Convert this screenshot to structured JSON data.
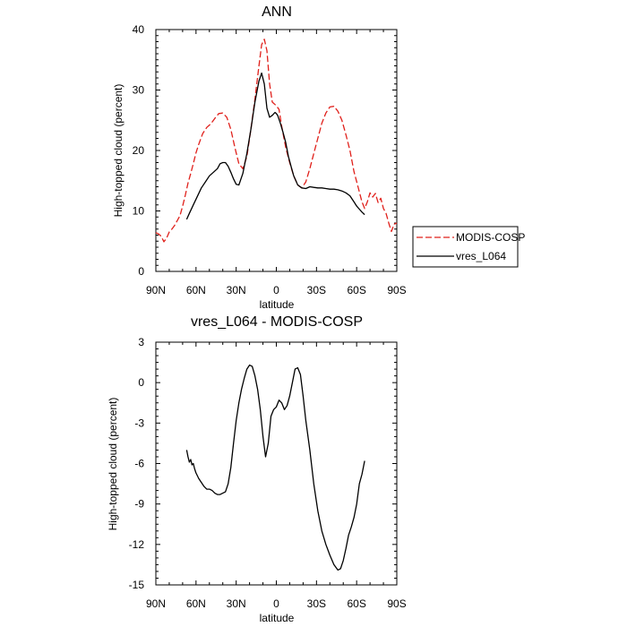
{
  "colors": {
    "modis": "#e0201b",
    "model": "#000000"
  },
  "chart_data": [
    {
      "type": "line",
      "title": "ANN",
      "xlabel": "latitude",
      "ylabel": "High-topped cloud (percent)",
      "xlim": [
        90,
        -90
      ],
      "ylim": [
        0,
        40
      ],
      "xticks": [
        90,
        60,
        30,
        0,
        -30,
        -60,
        -90
      ],
      "xtick_labels": [
        "90N",
        "60N",
        "30N",
        "0",
        "30S",
        "60S",
        "90S"
      ],
      "yticks": [
        0,
        10,
        20,
        30,
        40
      ],
      "ytick_labels": [
        "0",
        "10",
        "20",
        "30",
        "40"
      ],
      "legend_position": "right",
      "series": [
        {
          "name": "MODIS-COSP",
          "style": "dashed",
          "color": "#e0201b",
          "x": [
            90,
            88,
            86,
            84,
            82,
            80,
            78,
            76,
            74,
            72,
            70,
            68,
            66,
            64,
            62,
            60,
            58,
            55,
            52,
            49,
            46,
            43,
            40,
            37,
            34,
            31,
            28,
            25,
            22,
            19,
            16,
            13,
            11,
            9,
            7,
            5,
            3,
            1,
            0,
            -2,
            -4,
            -7,
            -10,
            -13,
            -16,
            -19,
            -22,
            -25,
            -28,
            -31,
            -34,
            -37,
            -40,
            -43,
            -46,
            -49,
            -52,
            -55,
            -58,
            -61,
            -64,
            -66,
            -68,
            -70,
            -72,
            -74,
            -76,
            -78,
            -80,
            -82,
            -84,
            -86,
            -88,
            -90
          ],
          "y": [
            6.4,
            6.2,
            5.8,
            4.9,
            5.5,
            6.5,
            7.0,
            7.6,
            8.4,
            9.2,
            10.8,
            12.6,
            14.6,
            16.2,
            17.8,
            19.6,
            21.0,
            22.8,
            23.8,
            24.4,
            25.3,
            26.1,
            26.2,
            25.5,
            23.5,
            20.5,
            17.8,
            17.0,
            19.0,
            23.5,
            28.5,
            34.0,
            37.5,
            38.4,
            36.5,
            31.0,
            28.0,
            27.6,
            27.4,
            26.8,
            24.0,
            20.5,
            18.0,
            15.8,
            14.3,
            13.8,
            14.8,
            17.0,
            19.5,
            22.0,
            24.5,
            26.2,
            27.2,
            27.3,
            26.5,
            25.0,
            22.6,
            20.0,
            16.5,
            14.0,
            11.5,
            10.4,
            11.5,
            13.0,
            12.3,
            12.9,
            11.4,
            12.1,
            10.4,
            9.6,
            8.0,
            6.6,
            7.8,
            8.0
          ]
        },
        {
          "name": "vres_L064",
          "style": "solid",
          "color": "#000000",
          "x": [
            67,
            65,
            62,
            59,
            56,
            53,
            50,
            47,
            44,
            42,
            40,
            38,
            36,
            34,
            32,
            30,
            28,
            25,
            22,
            19,
            16,
            13,
            11,
            9,
            7,
            5,
            3,
            1,
            0,
            -1,
            -3,
            -5,
            -7,
            -9,
            -11,
            -13,
            -16,
            -19,
            -22,
            -25,
            -28,
            -31,
            -34,
            -37,
            -40,
            -43,
            -46,
            -49,
            -52,
            -55,
            -58,
            -60,
            -62,
            -64,
            -66
          ],
          "y": [
            8.6,
            9.6,
            11.0,
            12.4,
            13.8,
            14.8,
            15.8,
            16.4,
            17.0,
            17.8,
            18.0,
            18.0,
            17.4,
            16.4,
            15.3,
            14.4,
            14.3,
            16.2,
            19.5,
            23.5,
            28.0,
            31.5,
            32.8,
            31.0,
            27.0,
            25.5,
            25.8,
            26.3,
            26.1,
            25.8,
            24.5,
            23.0,
            21.3,
            19.0,
            17.4,
            15.8,
            14.3,
            13.8,
            13.7,
            14.0,
            13.9,
            13.8,
            13.8,
            13.7,
            13.6,
            13.6,
            13.5,
            13.3,
            13.0,
            12.5,
            11.5,
            10.8,
            10.3,
            9.8,
            9.4
          ]
        }
      ]
    },
    {
      "type": "line",
      "title": "vres_L064 - MODIS-COSP",
      "xlabel": "latitude",
      "ylabel": "High-topped cloud (percent)",
      "xlim": [
        90,
        -90
      ],
      "ylim": [
        -15,
        3
      ],
      "xticks": [
        90,
        60,
        30,
        0,
        -30,
        -60,
        -90
      ],
      "xtick_labels": [
        "90N",
        "60N",
        "30N",
        "0",
        "30S",
        "60S",
        "90S"
      ],
      "yticks": [
        3,
        0,
        -3,
        -6,
        -9,
        -12,
        -15
      ],
      "ytick_labels": [
        "3",
        "0",
        "-3",
        "-6",
        "-9",
        "-12",
        "-15"
      ],
      "series": [
        {
          "name": "vres_L064 - MODIS-COSP",
          "style": "solid",
          "color": "#000000",
          "x": [
            67,
            66,
            65,
            64,
            63,
            62,
            61,
            60,
            59,
            58,
            56,
            54,
            52,
            50,
            48,
            46,
            44,
            42,
            40,
            38,
            36,
            34,
            32,
            30,
            28,
            26,
            24,
            22,
            20,
            18,
            16,
            14,
            12,
            10,
            8,
            6,
            4,
            2,
            0,
            -2,
            -4,
            -6,
            -8,
            -10,
            -12,
            -14,
            -16,
            -18,
            -20,
            -22,
            -25,
            -28,
            -31,
            -34,
            -37,
            -40,
            -43,
            -46,
            -48,
            -50,
            -52,
            -54,
            -56,
            -58,
            -60,
            -62,
            -64,
            -66
          ],
          "y": [
            -5.0,
            -5.5,
            -5.9,
            -5.7,
            -6.1,
            -6.0,
            -6.4,
            -6.7,
            -6.9,
            -7.1,
            -7.4,
            -7.7,
            -7.9,
            -7.9,
            -8.0,
            -8.2,
            -8.3,
            -8.3,
            -8.2,
            -8.1,
            -7.5,
            -6.3,
            -4.5,
            -2.8,
            -1.5,
            -0.5,
            0.3,
            1.0,
            1.3,
            1.2,
            0.5,
            -0.5,
            -2.0,
            -4.0,
            -5.5,
            -4.5,
            -2.5,
            -2.0,
            -1.8,
            -1.3,
            -1.5,
            -2.0,
            -1.7,
            -1.0,
            0.0,
            1.0,
            1.1,
            0.6,
            -1.0,
            -2.8,
            -5.0,
            -7.5,
            -9.5,
            -11.0,
            -12.0,
            -12.8,
            -13.5,
            -13.9,
            -13.8,
            -13.2,
            -12.3,
            -11.3,
            -10.7,
            -10.0,
            -9.0,
            -7.5,
            -6.8,
            -5.8
          ]
        }
      ]
    }
  ]
}
